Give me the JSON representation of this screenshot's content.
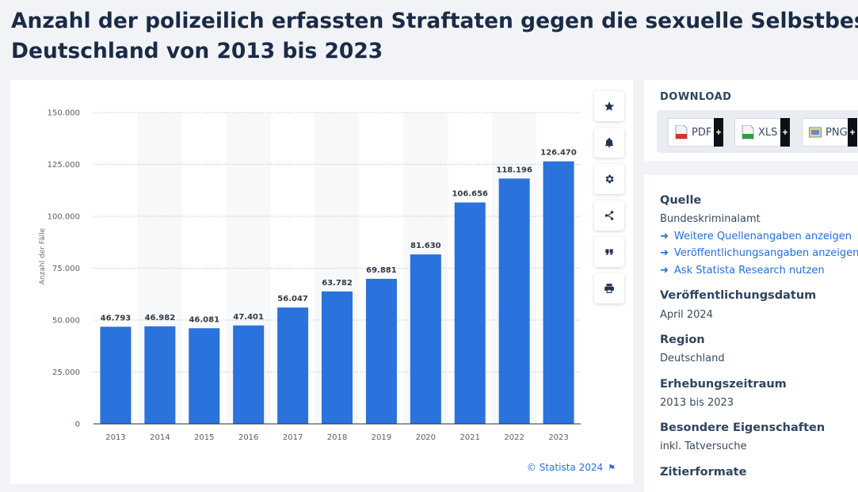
{
  "page": {
    "title_line1": "Anzahl der polizeilich erfassten Straftaten gegen die sexuelle Selbstbestimmung in",
    "title_line2": "Deutschland von 2013 bis 2023"
  },
  "chart_data": {
    "type": "bar",
    "categories": [
      "2013",
      "2014",
      "2015",
      "2016",
      "2017",
      "2018",
      "2019",
      "2020",
      "2021",
      "2022",
      "2023"
    ],
    "values": [
      46793,
      46982,
      46081,
      47401,
      56047,
      63782,
      69881,
      81630,
      106656,
      118196,
      126470
    ],
    "value_labels": [
      "46.793",
      "46.982",
      "46.081",
      "47.401",
      "56.047",
      "63.782",
      "69.881",
      "81.630",
      "106.656",
      "118.196",
      "126.470"
    ],
    "title": "",
    "xlabel": "",
    "ylabel": "Anzahl der Fälle",
    "ylim": [
      0,
      150000
    ],
    "yticks": [
      0,
      25000,
      50000,
      75000,
      100000,
      125000,
      150000
    ],
    "ytick_labels": [
      "0",
      "25.000",
      "50.000",
      "75.000",
      "100.000",
      "125.000",
      "150.000"
    ],
    "bar_color": "#2a72dc",
    "grid": true
  },
  "credit": {
    "text": "© Statista 2024"
  },
  "download": {
    "heading": "DOWNLOAD",
    "buttons": [
      "PDF",
      "XLS",
      "PNG"
    ],
    "plus": "+"
  },
  "info": {
    "quelle_h": "Quelle",
    "quelle_v": "Bundeskriminalamt",
    "links": [
      "Weitere Quellenangaben anzeigen",
      "Veröffentlichungsangaben anzeigen",
      "Ask Statista Research nutzen"
    ],
    "link_arrow": "➜",
    "datum_h": "Veröffentlichungsdatum",
    "datum_v": "April 2024",
    "region_h": "Region",
    "region_v": "Deutschland",
    "zeitraum_h": "Erhebungszeitraum",
    "zeitraum_v": "2013 bis 2023",
    "eig_h": "Besondere Eigenschaften",
    "eig_v": "inkl. Tatversuche",
    "zit_h": "Zitierformate"
  },
  "colors": {
    "accent": "#2a72dc",
    "link": "#1f6fde",
    "title": "#1a2b47"
  },
  "icons": [
    "star-icon",
    "bell-icon",
    "gear-icon",
    "share-icon",
    "quote-icon",
    "print-icon",
    "flag-icon",
    "pdf-file-icon",
    "xls-file-icon",
    "png-file-icon",
    "arrow-right-icon"
  ]
}
